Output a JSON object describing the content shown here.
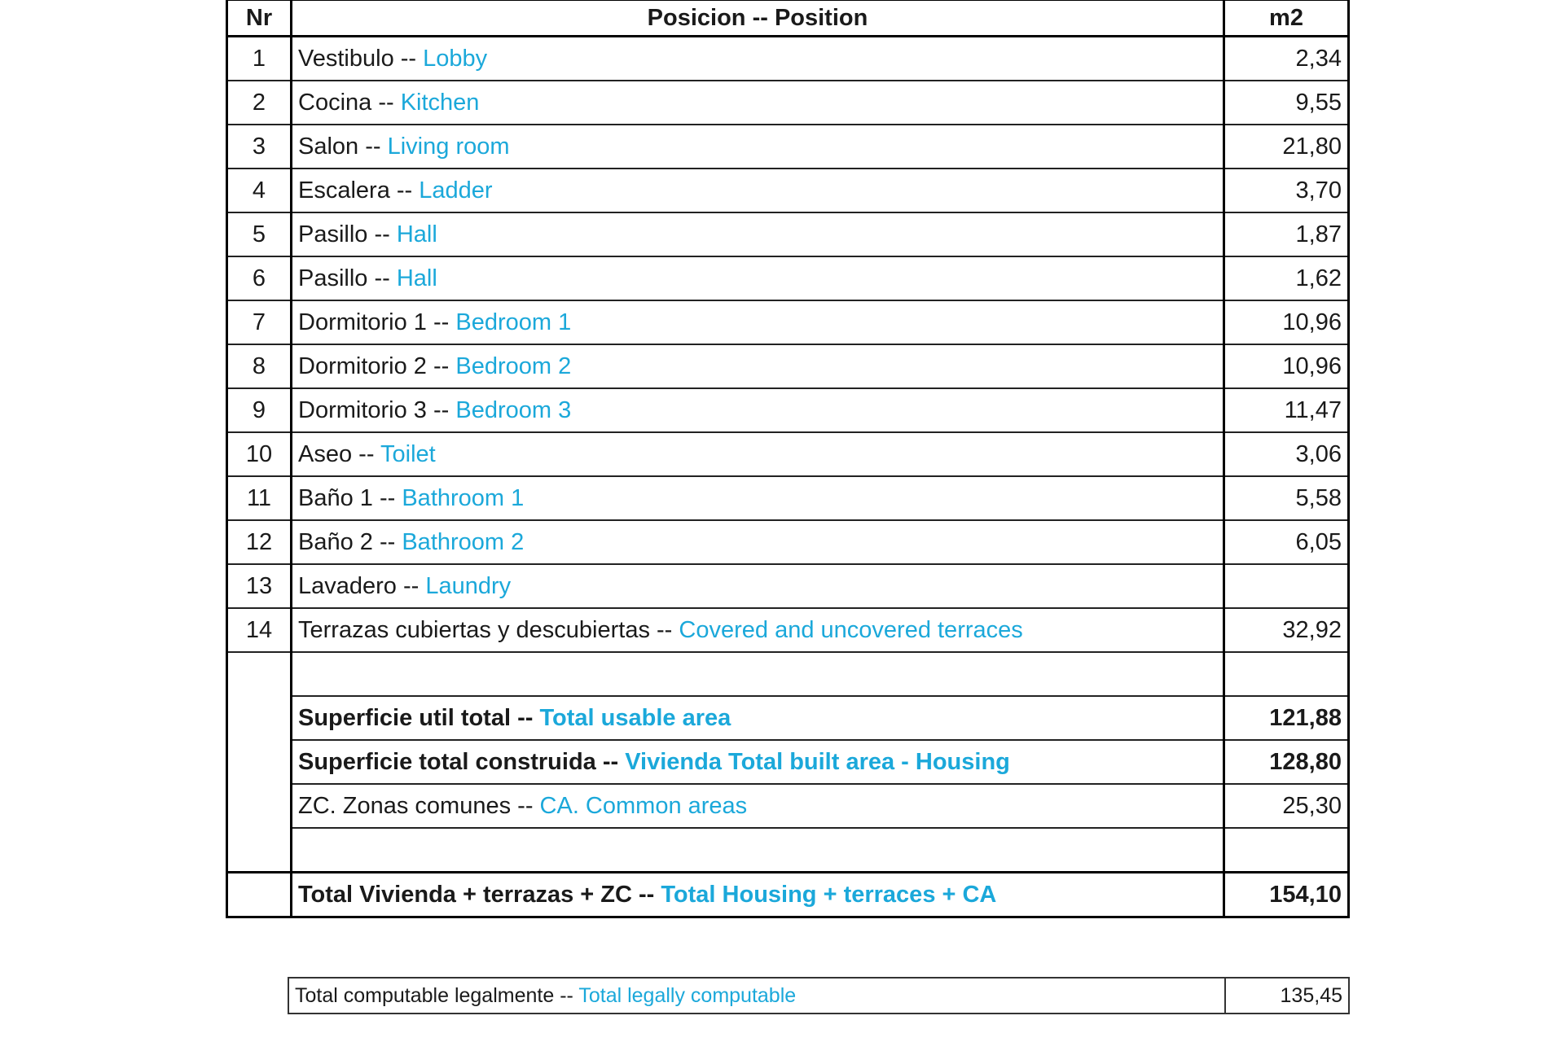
{
  "header": {
    "nr": "Nr",
    "position": "Posicion -- Position",
    "area": "m2"
  },
  "rows": [
    {
      "nr": "1",
      "es": "Vestibulo -- ",
      "en": "Lobby",
      "m2": "2,34"
    },
    {
      "nr": "2",
      "es": "Cocina --  ",
      "en": "Kitchen",
      "m2": "9,55"
    },
    {
      "nr": "3",
      "es": "Salon -- ",
      "en": "Living room",
      "m2": "21,80"
    },
    {
      "nr": "4",
      "es": "Escalera -- ",
      "en": "Ladder",
      "m2": "3,70"
    },
    {
      "nr": "5",
      "es": "Pasillo -- ",
      "en": "Hall",
      "m2": "1,87"
    },
    {
      "nr": "6",
      "es": "Pasillo -- ",
      "en": "Hall",
      "m2": "1,62"
    },
    {
      "nr": "7",
      "es": "Dormitorio 1 -- ",
      "en": "Bedroom 1",
      "m2": "10,96"
    },
    {
      "nr": "8",
      "es": "Dormitorio 2 -- ",
      "en": "Bedroom 2",
      "m2": "10,96"
    },
    {
      "nr": "9",
      "es": "Dormitorio 3 -- ",
      "en": "Bedroom 3",
      "m2": "11,47"
    },
    {
      "nr": "10",
      "es": "Aseo -- ",
      "en": "Toilet",
      "m2": "3,06"
    },
    {
      "nr": "11",
      "es": "Baño 1 -- ",
      "en": "Bathroom 1",
      "m2": "5,58"
    },
    {
      "nr": "12",
      "es": "Baño 2 -- ",
      "en": "Bathroom 2",
      "m2": "6,05"
    },
    {
      "nr": "13",
      "es": "Lavadero -- ",
      "en": "Laundry",
      "m2": ""
    },
    {
      "nr": "14",
      "es": "Terrazas cubiertas y descubiertas -- ",
      "en": "Covered and uncovered terraces",
      "m2": "32,92"
    }
  ],
  "summary": {
    "usable": {
      "es": "Superficie util total -- ",
      "en": "Total usable area",
      "m2": "121,88"
    },
    "built": {
      "es": "Superficie total construida -- ",
      "en": "Vivienda Total built area - Housing",
      "m2": "128,80"
    },
    "common": {
      "es": "ZC. Zonas comunes  -- ",
      "en": "CA. Common areas",
      "m2": "25,30"
    },
    "total": {
      "es": "Total Vivienda + terrazas + ZC  -- ",
      "en": "Total Housing + terraces + CA",
      "m2": "154,10"
    },
    "legal": {
      "es": "Total computable legalmente -- ",
      "en": "Total legally computable",
      "m2": "135,45"
    }
  },
  "colors": {
    "english_text": "#1ba8da",
    "border": "#000000"
  }
}
